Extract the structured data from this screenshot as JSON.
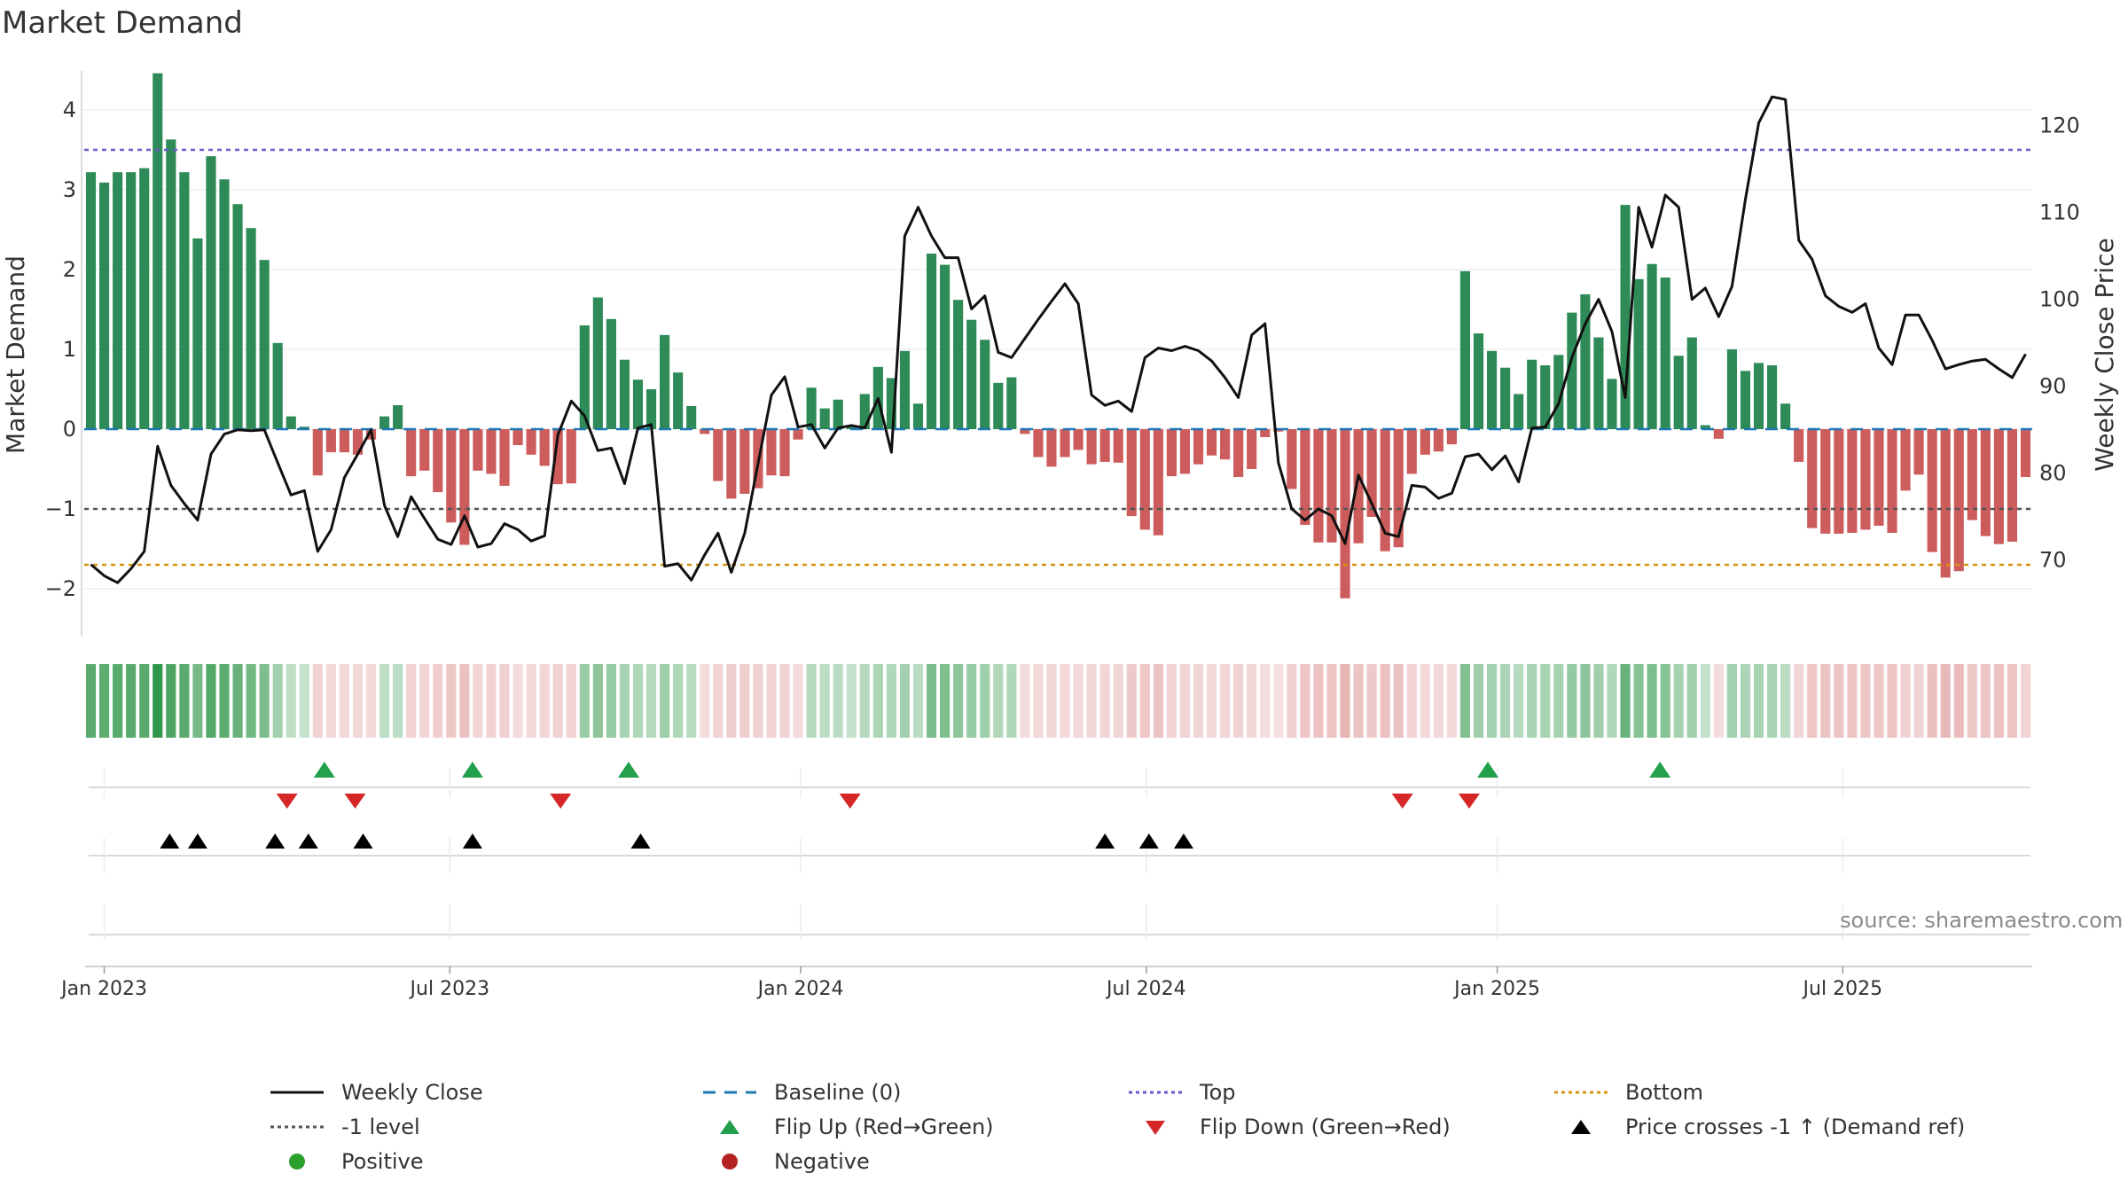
{
  "title": "Market Demand",
  "source": "source: sharemaestro.com",
  "colors": {
    "positive_bar": "#2e8b57",
    "negative_bar": "#cd5c5c",
    "close": "#111111",
    "baseline": "#1f77b4",
    "top": "#6a5acd",
    "minus_one": "#555555",
    "bottom": "#d4950f",
    "flip_up": "#22a04b",
    "flip_down": "#d62728",
    "cross": "#000000",
    "positive_dot": "#2ca02c",
    "negative_dot": "#b22222"
  },
  "chart_data": {
    "type": "bar",
    "title": "Market Demand",
    "ylabel_left": "Market Demand",
    "ylabel_right": "Weekly Close Price",
    "ylim_left": [
      -2.6,
      4.6
    ],
    "ylim_right": [
      61.2,
      127.3
    ],
    "left_ticks": [
      -2,
      -1,
      0,
      1,
      2,
      3,
      4
    ],
    "left_tick_labels": [
      "−2",
      "−1",
      "0",
      "1",
      "2",
      "3",
      "4"
    ],
    "right_ticks": [
      70,
      80,
      90,
      100,
      110,
      120
    ],
    "right_tick_labels": [
      "70",
      "80",
      "90",
      "100",
      "110",
      "120"
    ],
    "x_start": "2022-12-26",
    "x_end": "2025-09-22",
    "x_ticks": [
      {
        "label": "Jan 2023",
        "week": 1.0
      },
      {
        "label": "Jul 2023",
        "week": 26.9
      },
      {
        "label": "Jan 2024",
        "week": 53.2
      },
      {
        "label": "Jul 2024",
        "week": 79.1
      },
      {
        "label": "Jan 2025",
        "week": 105.4
      },
      {
        "label": "Jul 2025",
        "week": 131.3
      }
    ],
    "reference_lines": {
      "top": 3.5,
      "minus_one": -1,
      "bottom": -1.7,
      "baseline": 0
    },
    "demand": [
      3.22,
      3.09,
      3.22,
      3.22,
      3.27,
      4.46,
      3.63,
      3.22,
      2.39,
      3.42,
      3.13,
      2.82,
      2.52,
      2.12,
      1.08,
      0.16,
      0.03,
      -0.58,
      -0.29,
      -0.29,
      -0.32,
      -0.13,
      0.16,
      0.3,
      -0.59,
      -0.52,
      -0.79,
      -1.17,
      -1.45,
      -0.52,
      -0.56,
      -0.71,
      -0.2,
      -0.32,
      -0.46,
      -0.69,
      -0.68,
      1.3,
      1.65,
      1.38,
      0.87,
      0.62,
      0.5,
      1.18,
      0.71,
      0.29,
      -0.06,
      -0.65,
      -0.87,
      -0.81,
      -0.74,
      -0.58,
      -0.59,
      -0.13,
      0.52,
      0.26,
      0.37,
      0.04,
      0.44,
      0.78,
      0.64,
      0.98,
      0.32,
      2.2,
      2.06,
      1.62,
      1.37,
      1.12,
      0.58,
      0.65,
      -0.06,
      -0.35,
      -0.47,
      -0.35,
      -0.26,
      -0.44,
      -0.41,
      -0.42,
      -1.09,
      -1.26,
      -1.33,
      -0.59,
      -0.56,
      -0.44,
      -0.33,
      -0.38,
      -0.6,
      -0.5,
      -0.1,
      -0.03,
      -0.75,
      -1.2,
      -1.42,
      -1.42,
      -2.12,
      -1.43,
      -1.1,
      -1.53,
      -1.48,
      -0.56,
      -0.32,
      -0.28,
      -0.19,
      1.98,
      1.2,
      0.98,
      0.77,
      0.44,
      0.87,
      0.8,
      0.93,
      1.46,
      1.69,
      1.15,
      0.63,
      2.81,
      1.88,
      2.07,
      1.9,
      0.92,
      1.15,
      0.05,
      -0.12,
      1.0,
      0.73,
      0.83,
      0.8,
      0.32,
      -0.41,
      -1.24,
      -1.31,
      -1.31,
      -1.3,
      -1.26,
      -1.21,
      -1.3,
      -0.77,
      -0.57,
      -1.54,
      -1.86,
      -1.78,
      -1.14,
      -1.34,
      -1.44,
      -1.41,
      -0.6
    ],
    "close": [
      69.5,
      68.2,
      67.4,
      69.0,
      71.0,
      83.1,
      78.6,
      76.5,
      74.6,
      82.2,
      84.5,
      85.0,
      84.9,
      85.0,
      81.2,
      77.5,
      78.0,
      71.0,
      73.5,
      79.5,
      82.2,
      85.0,
      76.3,
      72.7,
      77.3,
      74.8,
      72.4,
      71.8,
      75.1,
      71.5,
      71.9,
      74.2,
      73.5,
      72.2,
      72.8,
      84.4,
      88.3,
      86.6,
      82.6,
      82.9,
      78.8,
      85.2,
      85.6,
      69.3,
      69.6,
      67.7,
      70.6,
      73.1,
      68.6,
      73.1,
      81.1,
      89.0,
      91.1,
      85.3,
      85.6,
      82.9,
      85.2,
      85.5,
      85.2,
      88.6,
      82.4,
      107.3,
      110.6,
      107.3,
      104.8,
      104.8,
      98.9,
      100.4,
      93.9,
      93.3,
      95.5,
      97.7,
      99.8,
      101.8,
      99.5,
      89.0,
      87.8,
      88.3,
      87.1,
      93.3,
      94.4,
      94.1,
      94.6,
      94.1,
      92.9,
      91.0,
      88.7,
      95.9,
      97.2,
      81.2,
      75.9,
      74.6,
      75.9,
      75.1,
      71.9,
      79.8,
      76.5,
      73.1,
      72.7,
      78.6,
      78.4,
      77.1,
      77.7,
      81.9,
      82.2,
      80.4,
      82.0,
      79.0,
      85.2,
      85.3,
      88.0,
      93.3,
      97.2,
      100.0,
      96.3,
      88.7,
      110.6,
      106.0,
      112.0,
      110.6,
      100.0,
      101.3,
      98.0,
      101.5,
      111.5,
      120.3,
      123.3,
      123.0,
      106.8,
      104.6,
      100.4,
      99.2,
      98.5,
      99.5,
      94.4,
      92.5,
      98.2,
      98.2,
      95.3,
      92.0,
      92.5,
      92.9,
      93.1,
      92.0,
      91.0,
      93.7
    ],
    "flip_up_weeks": [
      17.5,
      28.6,
      40.3,
      104.7,
      117.6
    ],
    "flip_down_weeks": [
      14.7,
      19.8,
      35.2,
      56.9,
      98.3,
      103.3
    ],
    "price_cross_weeks": [
      5.9,
      8.0,
      13.8,
      16.3,
      20.4,
      28.6,
      41.2,
      76.0,
      79.3,
      81.9
    ]
  },
  "legend": [
    {
      "key": "close",
      "label": "Weekly Close",
      "icon": "solid-line"
    },
    {
      "key": "baseline",
      "label": "Baseline (0)",
      "icon": "dashed-line"
    },
    {
      "key": "top",
      "label": "Top",
      "icon": "dotted-line"
    },
    {
      "key": "bottom",
      "label": "Bottom",
      "icon": "dotted-line"
    },
    {
      "key": "minus_one",
      "label": "-1 level",
      "icon": "dotted-line"
    },
    {
      "key": "flip_up",
      "label": "Flip Up (Red→Green)",
      "icon": "triangle-up"
    },
    {
      "key": "flip_down",
      "label": "Flip Down (Green→Red)",
      "icon": "triangle-down"
    },
    {
      "key": "cross",
      "label": "Price crosses -1 ↑ (Demand ref)",
      "icon": "triangle-up"
    },
    {
      "key": "positive_dot",
      "label": "Positive",
      "icon": "circle"
    },
    {
      "key": "negative_dot",
      "label": "Negative",
      "icon": "circle"
    }
  ]
}
